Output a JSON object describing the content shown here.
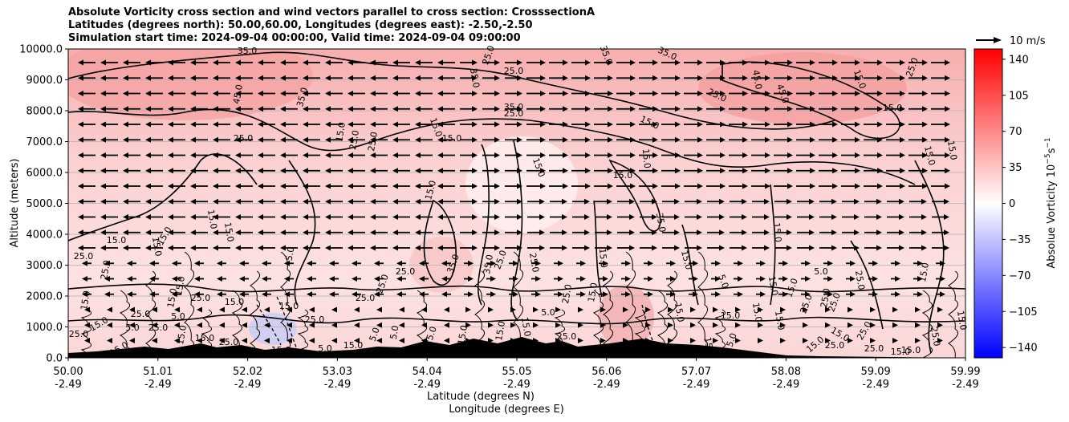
{
  "chart_data": {
    "type": "heatmap",
    "title_lines": [
      "Absolute Vorticity cross section and wind vectors parallel to cross section: CrosssectionA",
      "Latitudes (degrees north): 50.00,60.00, Longitudes (degrees east): -2.50,-2.50",
      "Simulation start time: 2024-09-04 00:00:00, Valid time: 2024-09-04 09:00:00"
    ],
    "xlabel_1": "Latitude (degrees N)",
    "xlabel_2": "Longitude (degrees E)",
    "ylabel": "Altitude (meters)",
    "x_ticks": [
      {
        "lat": "50.00",
        "lon": "-2.49"
      },
      {
        "lat": "51.01",
        "lon": "-2.49"
      },
      {
        "lat": "52.02",
        "lon": "-2.49"
      },
      {
        "lat": "53.03",
        "lon": "-2.49"
      },
      {
        "lat": "54.04",
        "lon": "-2.49"
      },
      {
        "lat": "55.05",
        "lon": "-2.49"
      },
      {
        "lat": "56.06",
        "lon": "-2.49"
      },
      {
        "lat": "57.07",
        "lon": "-2.49"
      },
      {
        "lat": "58.08",
        "lon": "-2.49"
      },
      {
        "lat": "59.09",
        "lon": "-2.49"
      },
      {
        "lat": "59.99",
        "lon": "-2.49"
      }
    ],
    "y_ticks": [
      "0.0",
      "1000.0",
      "2000.0",
      "3000.0",
      "4000.0",
      "5000.0",
      "6000.0",
      "7000.0",
      "8000.0",
      "9000.0",
      "10000.0"
    ],
    "ylim": [
      0,
      10000
    ],
    "grid": "horizontal",
    "colorbar": {
      "label": "Absolue Vorticity 10",
      "label_sup": "−5",
      "label_unit": "s",
      "label_unit_sup": "−1",
      "ticks": [
        "140",
        "105",
        "70",
        "35",
        "0",
        "−35",
        "−70",
        "−105",
        "−140"
      ],
      "range": [
        -150,
        150
      ],
      "colors": {
        "min": "#0000ff",
        "mid": "#ffffff",
        "max": "#ff0000"
      }
    },
    "quiver_key": "10 m/s",
    "contour_labels": [
      "5.0",
      "15.0",
      "25.0",
      "35.0",
      "45.0"
    ]
  }
}
